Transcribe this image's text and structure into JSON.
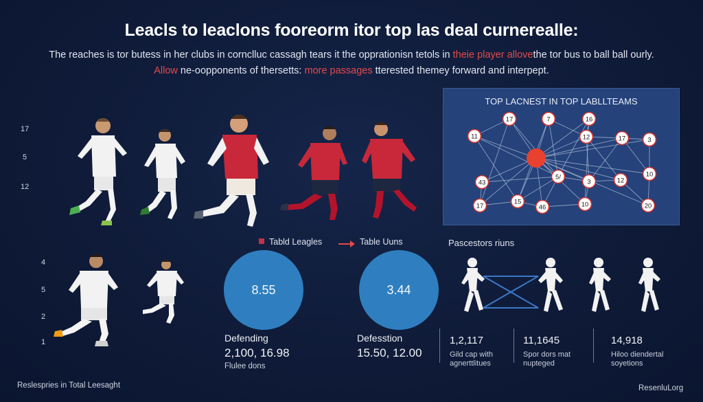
{
  "title": "Leacls to leaclons fooreorm itor top las deal curnerealle:",
  "subtitle": {
    "line1_plain": "The reaches is tor butess in her clubs in cornclluc cassagh tears it the opprationisn tetols in ",
    "line1_red": "theie player allove",
    "line1_end": "the tor bus to ball ball ourly.",
    "line2_red": "Allow",
    "line2_mid": " ne-oopponents of thersetts: ",
    "line2_red2": "more passages",
    "line2_end": " tterested themey forward and interpept."
  },
  "left_axis_top": [
    "17",
    "5",
    "12"
  ],
  "left_axis_bottom": [
    "4",
    "5",
    "2",
    "1"
  ],
  "legend": {
    "item1": "Tabld Leagles",
    "item2": "Table Uuns"
  },
  "stats": [
    {
      "circle": "8.55",
      "heading": "Defending",
      "value": "2,100, 16.98",
      "sub": "Flulee dons"
    },
    {
      "circle": "3.44",
      "heading": "Defesstion",
      "value": "15.50, 12.00",
      "sub": ""
    }
  ],
  "network": {
    "title": "TOP LACNEST IN TOP LABLLTEAMS",
    "nodes": [
      "17",
      "7",
      "16",
      "11",
      "12",
      "17",
      "3",
      "43",
      "5/",
      "3",
      "12",
      "10",
      "17",
      "15",
      "46",
      "10",
      "20"
    ],
    "hub_color": "#e8412f",
    "node_border": "#d0312d"
  },
  "passes": {
    "title": "Pascestors riuns",
    "metrics": [
      {
        "value": "1,2,117",
        "sub1": "Gild cap with",
        "sub2": "agnerttlitues"
      },
      {
        "value": "11,1645",
        "sub1": "Spor dors mat",
        "sub2": "nupteged"
      },
      {
        "value": "14,918",
        "sub1": "Hiloo diendertal",
        "sub2": "soyetions"
      }
    ]
  },
  "footer": {
    "left": "Reslespries in Total Leesaght",
    "right": "ResenluLorg"
  },
  "colors": {
    "background": "#0f1b38",
    "accent_red": "#e54a4a",
    "circle_blue": "#2f7fc0",
    "panel_blue": "#25427a",
    "kit_red": "#c8283a",
    "kit_white": "#f2f2f2"
  }
}
